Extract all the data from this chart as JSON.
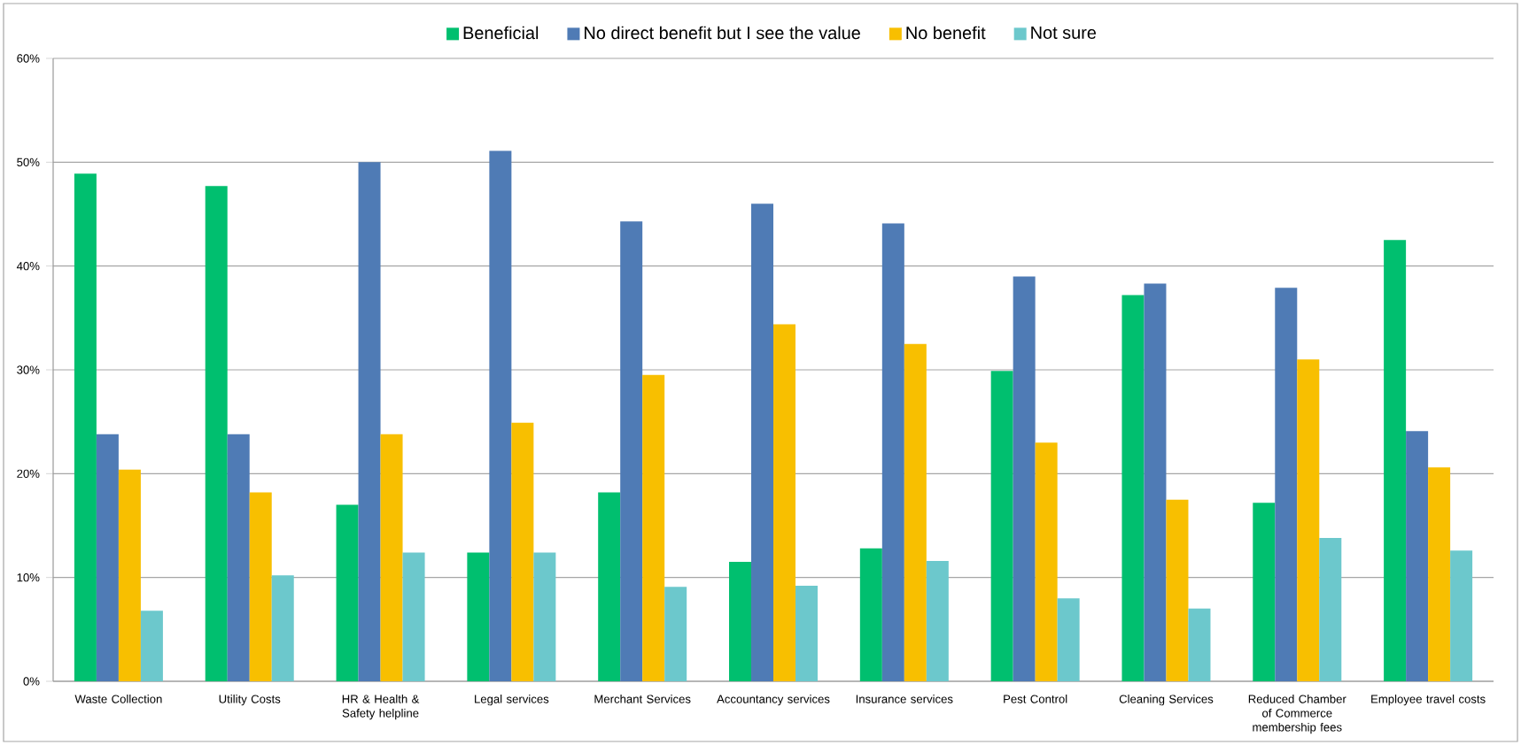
{
  "chart_data": {
    "type": "bar",
    "categories": [
      "Waste Collection",
      "Utility Costs",
      "HR & Health & Safety helpline",
      "Legal services",
      "Merchant Services",
      "Accountancy services",
      "Insurance services",
      "Pest Control",
      "Cleaning Services",
      "Reduced Chamber of Commerce membership fees",
      "Employee travel costs"
    ],
    "series": [
      {
        "name": "Beneficial",
        "color": "#00bf6f",
        "values": [
          48.9,
          47.7,
          17.0,
          12.4,
          18.2,
          11.5,
          12.8,
          29.9,
          37.2,
          17.2,
          42.5
        ]
      },
      {
        "name": "No direct benefit but I see the value",
        "color": "#4f7bb5",
        "values": [
          23.8,
          23.8,
          50.0,
          51.1,
          44.3,
          46.0,
          44.1,
          39.0,
          38.3,
          37.9,
          24.1
        ]
      },
      {
        "name": "No benefit",
        "color": "#f8bf00",
        "values": [
          20.4,
          18.2,
          23.8,
          24.9,
          29.5,
          34.4,
          32.5,
          23.0,
          17.5,
          31.0,
          20.6
        ]
      },
      {
        "name": "Not sure",
        "color": "#6cc8cc",
        "values": [
          6.8,
          10.2,
          12.4,
          12.4,
          9.1,
          9.2,
          11.6,
          8.0,
          7.0,
          13.8,
          12.6
        ]
      }
    ],
    "ylim": [
      0,
      60
    ],
    "yticks": [
      {
        "value": 0,
        "label": "0%"
      },
      {
        "value": 10,
        "label": "10%"
      },
      {
        "value": 20,
        "label": "20%"
      },
      {
        "value": 30,
        "label": "30%"
      },
      {
        "value": 40,
        "label": "40%"
      },
      {
        "value": 50,
        "label": "50%"
      },
      {
        "value": 60,
        "label": "60%"
      }
    ],
    "grid": "y",
    "legend": "top"
  }
}
